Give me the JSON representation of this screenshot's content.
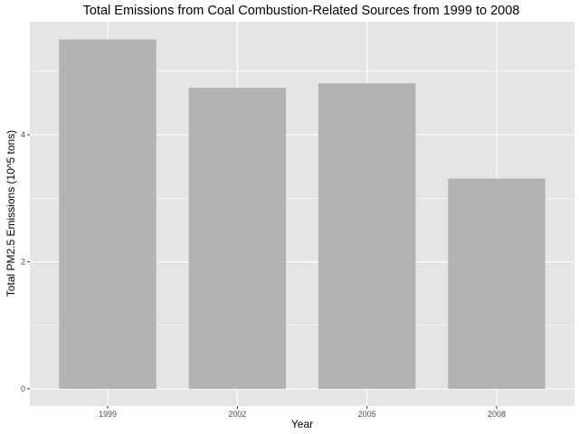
{
  "chart_data": {
    "type": "bar",
    "title": "Total Emissions from Coal Combustion-Related Sources from 1999 to 2008",
    "xlabel": "Year",
    "ylabel": "Total PM2.5 Emissions (10^5 tons)",
    "categories": [
      "1999",
      "2002",
      "2005",
      "2008"
    ],
    "values": [
      5.5,
      4.74,
      4.81,
      3.31
    ],
    "ylim": [
      -0.27,
      5.78
    ],
    "yticks": [
      0,
      2,
      4
    ],
    "grid": true,
    "legend": "none",
    "colors": {
      "panel_background": "#e5e5e5",
      "grid_line": "#ffffff",
      "bar_fill": "#b3b3b3",
      "tick_label": "#4d4d4d",
      "axis_tick": "#333333"
    }
  }
}
